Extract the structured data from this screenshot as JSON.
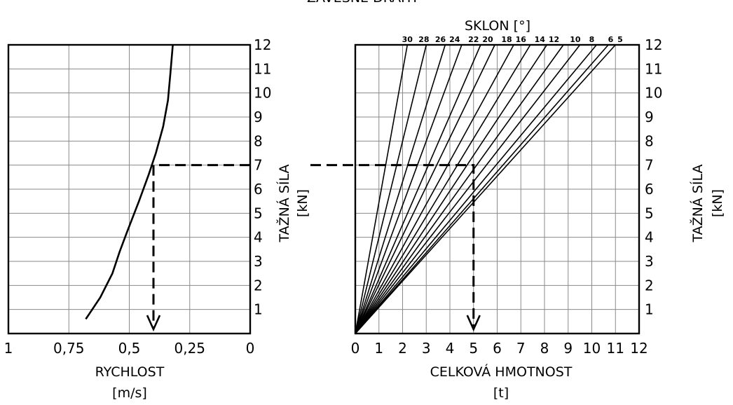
{
  "header": {
    "top_title": "ZÁVĚSNÉ DRÁHY"
  },
  "chart_data": [
    {
      "type": "line",
      "xlabel": "RYCHLOST",
      "xunit": "[m/s]",
      "ylabel": "TAŽNÁ SÍLA",
      "yunit": "[kN]",
      "xlim": [
        1,
        0
      ],
      "ylim": [
        0,
        12
      ],
      "x_tick_labels": [
        {
          "value": 1,
          "label": "1"
        },
        {
          "value": 0.75,
          "label": "0,75"
        },
        {
          "value": 0.5,
          "label": "0,5"
        },
        {
          "value": 0.25,
          "label": "0,25"
        },
        {
          "value": 0,
          "label": "0"
        }
      ],
      "y_ticks": [
        "1",
        "2",
        "3",
        "4",
        "5",
        "6",
        "7",
        "8",
        "9",
        "10",
        "11",
        "12"
      ],
      "grid": true,
      "series": [
        {
          "x": [
            0.68,
            0.62,
            0.57,
            0.54,
            0.51,
            0.46,
            0.42,
            0.39,
            0.36,
            0.34,
            0.33,
            0.32
          ],
          "y": [
            0.6,
            1.5,
            2.5,
            3.4,
            4.2,
            5.5,
            6.6,
            7.5,
            8.6,
            9.7,
            10.8,
            12.0
          ]
        }
      ],
      "reading": {
        "y": 7,
        "x": 0.4
      }
    },
    {
      "type": "line",
      "title": "SKLON",
      "title_unit": "[°]",
      "xlabel": "CELKOVÁ HMOTNOST",
      "xunit": "[t]",
      "ylabel": "TAŽNÁ SÍLA",
      "yunit": "[kN]",
      "xlim": [
        0,
        12
      ],
      "ylim": [
        0,
        12
      ],
      "x_ticks": [
        "0",
        "1",
        "2",
        "3",
        "4",
        "5",
        "6",
        "7",
        "8",
        "9",
        "10",
        "11",
        "12"
      ],
      "y_ticks": [
        "1",
        "2",
        "3",
        "4",
        "5",
        "6",
        "7",
        "8",
        "9",
        "10",
        "11",
        "12"
      ],
      "grid": true,
      "series": [
        {
          "slope": "30",
          "x": [
            0,
            2.2
          ],
          "y": [
            0,
            12
          ]
        },
        {
          "slope": "28",
          "x": [
            0,
            3.0
          ],
          "y": [
            0,
            12
          ]
        },
        {
          "slope": "26",
          "x": [
            0,
            3.8
          ],
          "y": [
            0,
            12
          ]
        },
        {
          "slope": "24",
          "x": [
            0,
            4.5
          ],
          "y": [
            0,
            12
          ]
        },
        {
          "slope": "22",
          "x": [
            0,
            5.3
          ],
          "y": [
            0,
            12
          ]
        },
        {
          "slope": "20",
          "x": [
            0,
            5.9
          ],
          "y": [
            0,
            12
          ]
        },
        {
          "slope": "18",
          "x": [
            0,
            6.7
          ],
          "y": [
            0,
            12
          ]
        },
        {
          "slope": "16",
          "x": [
            0,
            7.4
          ],
          "y": [
            0,
            12
          ]
        },
        {
          "slope": "14",
          "x": [
            0,
            8.1
          ],
          "y": [
            0,
            12
          ]
        },
        {
          "slope": "12",
          "x": [
            0,
            8.8
          ],
          "y": [
            0,
            12
          ]
        },
        {
          "slope": "10",
          "x": [
            0,
            9.5
          ],
          "y": [
            0,
            12
          ]
        },
        {
          "slope": "8",
          "x": [
            0,
            10.2
          ],
          "y": [
            0,
            12
          ]
        },
        {
          "slope": "6",
          "x": [
            0,
            10.7
          ],
          "y": [
            0,
            12
          ]
        },
        {
          "slope": "5",
          "x": [
            0,
            11.0
          ],
          "y": [
            0,
            12
          ]
        }
      ],
      "slope_labels": [
        {
          "text": "30",
          "x": 2.2
        },
        {
          "text": "28",
          "x": 2.9
        },
        {
          "text": "26",
          "x": 3.6
        },
        {
          "text": "24",
          "x": 4.2
        },
        {
          "text": "22",
          "x": 5.0
        },
        {
          "text": "20",
          "x": 5.6
        },
        {
          "text": "18",
          "x": 6.4
        },
        {
          "text": "16",
          "x": 7.0
        },
        {
          "text": "14",
          "x": 7.8
        },
        {
          "text": "12",
          "x": 8.4
        },
        {
          "text": "10",
          "x": 9.3
        },
        {
          "text": "8",
          "x": 10.0
        },
        {
          "text": "6",
          "x": 10.8
        },
        {
          "text": "5",
          "x": 11.2
        }
      ],
      "reading": {
        "y": 7,
        "x": 5
      }
    }
  ]
}
